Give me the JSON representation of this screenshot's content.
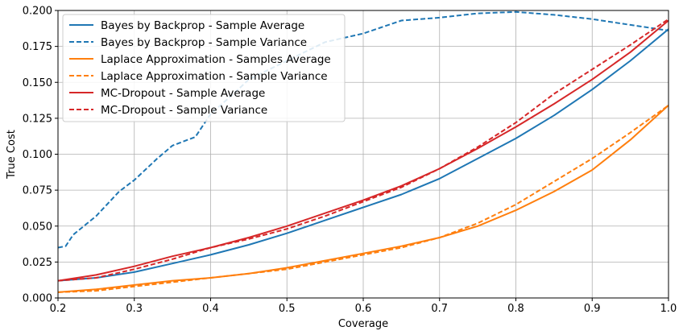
{
  "chart_data": {
    "type": "line",
    "xlabel": "Coverage",
    "ylabel": "True Cost",
    "xlim": [
      0.2,
      1.0
    ],
    "ylim": [
      0.0,
      0.2
    ],
    "x_ticks": [
      "0.2",
      "0.3",
      "0.4",
      "0.5",
      "0.6",
      "0.7",
      "0.8",
      "0.9",
      "1.0"
    ],
    "y_ticks": [
      "0.000",
      "0.025",
      "0.050",
      "0.075",
      "0.100",
      "0.125",
      "0.150",
      "0.175",
      "0.200"
    ],
    "grid": true,
    "legend_position": "top-left",
    "series": [
      {
        "name": "Bayes by Backprop - Sample Average",
        "color": "#1f77b4",
        "dash": "solid",
        "x": [
          0.2,
          0.25,
          0.3,
          0.35,
          0.4,
          0.45,
          0.5,
          0.55,
          0.6,
          0.65,
          0.7,
          0.75,
          0.8,
          0.85,
          0.9,
          0.95,
          1.0
        ],
        "y": [
          0.012,
          0.014,
          0.018,
          0.024,
          0.03,
          0.037,
          0.045,
          0.054,
          0.063,
          0.072,
          0.083,
          0.097,
          0.111,
          0.127,
          0.145,
          0.165,
          0.187
        ]
      },
      {
        "name": "Bayes by Backprop - Sample Variance",
        "color": "#1f77b4",
        "dash": "dashed",
        "x": [
          0.2,
          0.21,
          0.22,
          0.25,
          0.28,
          0.3,
          0.33,
          0.35,
          0.38,
          0.4,
          0.43,
          0.45,
          0.5,
          0.55,
          0.6,
          0.65,
          0.7,
          0.75,
          0.8,
          0.85,
          0.9,
          0.95,
          1.0
        ],
        "y": [
          0.035,
          0.036,
          0.044,
          0.057,
          0.074,
          0.082,
          0.097,
          0.106,
          0.112,
          0.128,
          0.142,
          0.152,
          0.165,
          0.178,
          0.184,
          0.193,
          0.195,
          0.198,
          0.199,
          0.197,
          0.194,
          0.19,
          0.186
        ]
      },
      {
        "name": "Laplace Approximation - Samples Average",
        "color": "#ff7f0e",
        "dash": "solid",
        "x": [
          0.2,
          0.25,
          0.3,
          0.35,
          0.4,
          0.45,
          0.5,
          0.55,
          0.6,
          0.65,
          0.7,
          0.75,
          0.8,
          0.85,
          0.9,
          0.95,
          1.0
        ],
        "y": [
          0.004,
          0.006,
          0.009,
          0.012,
          0.014,
          0.017,
          0.021,
          0.026,
          0.031,
          0.036,
          0.042,
          0.05,
          0.061,
          0.074,
          0.089,
          0.11,
          0.134
        ]
      },
      {
        "name": "Laplace Approximation - Sample Variance",
        "color": "#ff7f0e",
        "dash": "dashed",
        "x": [
          0.2,
          0.25,
          0.3,
          0.35,
          0.4,
          0.45,
          0.5,
          0.55,
          0.6,
          0.65,
          0.7,
          0.75,
          0.8,
          0.85,
          0.9,
          0.95,
          1.0
        ],
        "y": [
          0.004,
          0.005,
          0.008,
          0.011,
          0.014,
          0.017,
          0.02,
          0.025,
          0.03,
          0.035,
          0.042,
          0.052,
          0.065,
          0.081,
          0.097,
          0.115,
          0.134
        ]
      },
      {
        "name": "MC-Dropout - Sample Average",
        "color": "#d62728",
        "dash": "solid",
        "x": [
          0.2,
          0.25,
          0.3,
          0.35,
          0.4,
          0.45,
          0.5,
          0.55,
          0.6,
          0.65,
          0.7,
          0.75,
          0.8,
          0.85,
          0.9,
          0.95,
          1.0
        ],
        "y": [
          0.012,
          0.016,
          0.022,
          0.029,
          0.035,
          0.042,
          0.05,
          0.059,
          0.068,
          0.078,
          0.09,
          0.104,
          0.119,
          0.135,
          0.152,
          0.171,
          0.193
        ]
      },
      {
        "name": "MC-Dropout - Sample Variance",
        "color": "#d62728",
        "dash": "dashed",
        "x": [
          0.2,
          0.25,
          0.3,
          0.35,
          0.4,
          0.45,
          0.5,
          0.55,
          0.6,
          0.65,
          0.7,
          0.75,
          0.8,
          0.85,
          0.9,
          0.95,
          1.0
        ],
        "y": [
          0.012,
          0.014,
          0.02,
          0.027,
          0.035,
          0.041,
          0.048,
          0.057,
          0.067,
          0.077,
          0.09,
          0.105,
          0.122,
          0.142,
          0.159,
          0.176,
          0.194
        ]
      }
    ]
  }
}
